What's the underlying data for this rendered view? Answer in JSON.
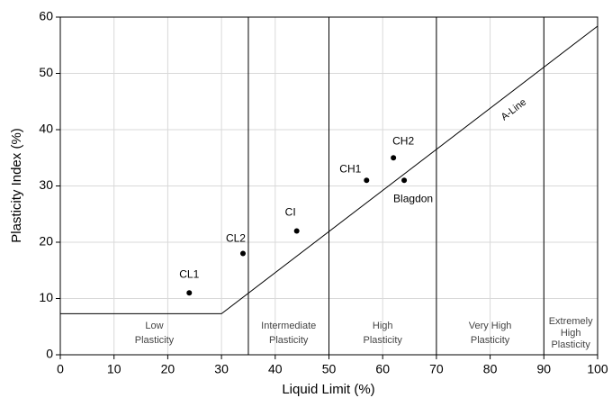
{
  "chart_data": {
    "type": "scatter",
    "x_label": "Liquid Limit (%)",
    "y_label": "Plasticity Index (%)",
    "xlim": [
      0,
      100
    ],
    "ylim": [
      0,
      60
    ],
    "xticks": [
      0,
      10,
      20,
      30,
      40,
      50,
      60,
      70,
      80,
      90,
      100
    ],
    "yticks": [
      0,
      10,
      20,
      30,
      40,
      50,
      60
    ],
    "grid": true,
    "points": {
      "labels": [
        "CL1",
        "CL2",
        "CI",
        "CH1",
        "CH2",
        "Blagdon"
      ],
      "x": [
        24,
        34,
        44,
        57,
        62,
        64
      ],
      "values": [
        11,
        18,
        22,
        31,
        35,
        31
      ],
      "color": "#000000"
    },
    "a_line": {
      "name": "A-Line",
      "x": [
        0,
        30,
        100
      ],
      "values": [
        7.3,
        7.3,
        58.4
      ],
      "color": "#000000"
    },
    "zone_boundaries": [
      35,
      50,
      70,
      90
    ],
    "zones": [
      {
        "lines": [
          "Low",
          "Plasticity"
        ]
      },
      {
        "lines": [
          "Intermediate",
          "Plasticity"
        ]
      },
      {
        "lines": [
          "High",
          "Plasticity"
        ]
      },
      {
        "lines": [
          "Very High",
          "Plasticity"
        ]
      },
      {
        "lines": [
          "Extremely",
          "High",
          "Plasticity"
        ]
      }
    ]
  }
}
